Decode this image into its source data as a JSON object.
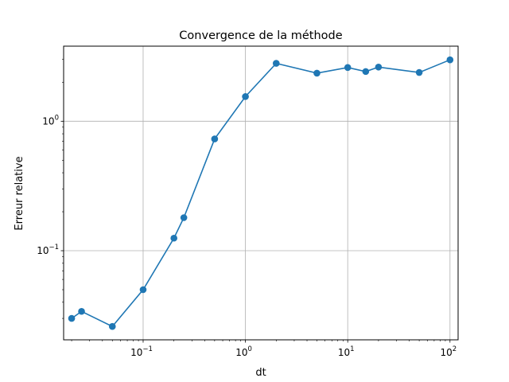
{
  "chart_data": {
    "type": "line",
    "title": "Convergence de la méthode",
    "xlabel": "dt",
    "ylabel": "Erreur relative",
    "x_scale": "log",
    "y_scale": "log",
    "xlim": [
      0.0167,
      120
    ],
    "ylim": [
      0.0205,
      3.8
    ],
    "grid": true,
    "color": "#1f77b4",
    "x_ticks": [
      {
        "value": 0.1,
        "base": "10",
        "exp": "−1"
      },
      {
        "value": 1,
        "base": "10",
        "exp": "0"
      },
      {
        "value": 10,
        "base": "10",
        "exp": "1"
      },
      {
        "value": 100,
        "base": "10",
        "exp": "2"
      }
    ],
    "y_ticks": [
      {
        "value": 0.1,
        "base": "10",
        "exp": "−1"
      },
      {
        "value": 1,
        "base": "10",
        "exp": "0"
      }
    ],
    "series": [
      {
        "x": [
          0.02,
          0.025,
          0.05,
          0.1,
          0.2,
          0.25,
          0.5,
          1,
          2,
          5,
          10,
          15,
          20,
          50,
          100
        ],
        "y": [
          0.03,
          0.034,
          0.026,
          0.05,
          0.125,
          0.18,
          0.73,
          1.55,
          2.8,
          2.35,
          2.6,
          2.42,
          2.62,
          2.38,
          2.98
        ]
      }
    ]
  }
}
